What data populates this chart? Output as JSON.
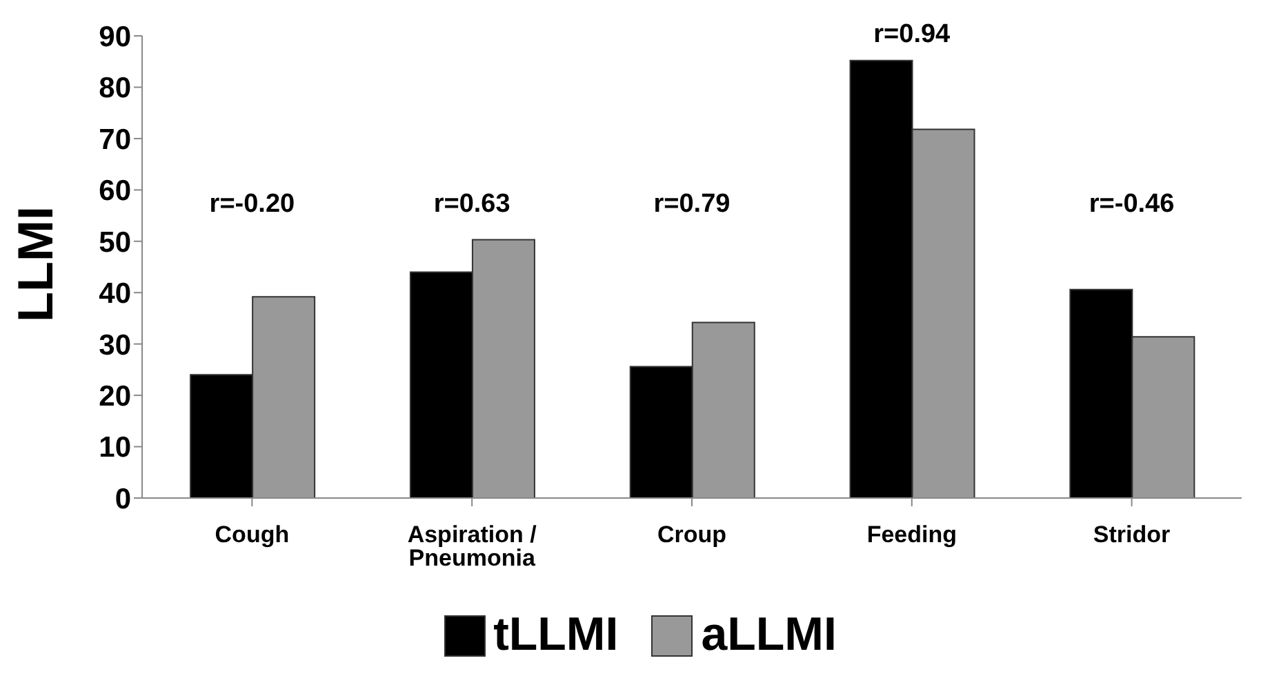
{
  "chart_data": {
    "type": "bar",
    "ylabel": "LLMI",
    "categories": [
      "Cough",
      "Aspiration / Pneumonia",
      "Croup",
      "Feeding",
      "Stridor"
    ],
    "series": [
      {
        "name": "tLLMI",
        "color": "#000000",
        "values": [
          24.0,
          44.0,
          25.6,
          85.2,
          40.6
        ]
      },
      {
        "name": "aLLMI",
        "color": "#999999",
        "values": [
          39.2,
          50.3,
          34.2,
          71.8,
          31.4
        ]
      }
    ],
    "ylim": [
      0,
      90
    ],
    "yticks": [
      0,
      10,
      20,
      30,
      40,
      50,
      60,
      70,
      80,
      90
    ],
    "grid": false,
    "legend": "bottom",
    "annotations": [
      "r=-0.20",
      "r=0.63",
      "r=0.79",
      "r=0.94",
      "r=-0.46"
    ]
  }
}
